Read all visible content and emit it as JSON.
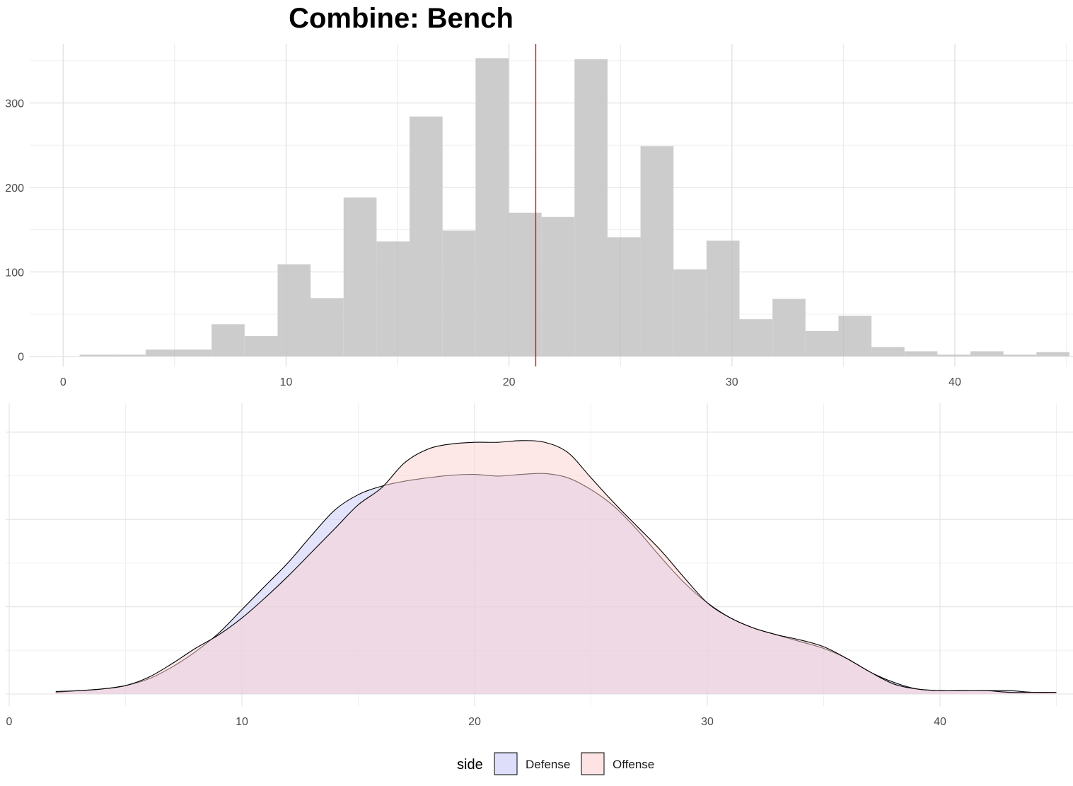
{
  "title": "Combine: Bench",
  "chart_data": [
    {
      "type": "bar",
      "subtype": "histogram",
      "xlim": [
        -1.5,
        45.3
      ],
      "ylim": [
        -12,
        370
      ],
      "x_ticks": [
        0,
        10,
        20,
        30,
        40
      ],
      "y_ticks": [
        0,
        100,
        200,
        300
      ],
      "grid": true,
      "bin_width": 1.48,
      "bin_starts": [
        0.74,
        2.22,
        3.7,
        5.18,
        6.66,
        8.14,
        9.62,
        11.1,
        12.58,
        14.06,
        15.54,
        17.02,
        18.5,
        19.98,
        21.46,
        22.94,
        24.42,
        25.9,
        27.38,
        28.86,
        30.34,
        31.82,
        33.3,
        34.78,
        36.26,
        37.74,
        39.22,
        40.7,
        42.18,
        43.66
      ],
      "values": [
        2,
        2,
        8,
        8,
        38,
        24,
        109,
        69,
        188,
        136,
        284,
        149,
        353,
        170,
        165,
        352,
        141,
        249,
        103,
        137,
        44,
        68,
        30,
        48,
        11,
        6,
        2,
        6,
        2,
        5
      ],
      "reference_line_x": 21.2,
      "reference_line_color": "#ff0000",
      "bar_color": "#cccccc"
    },
    {
      "type": "area",
      "subtype": "density",
      "xlim": [
        0,
        46
      ],
      "x_ticks": [
        0,
        10,
        20,
        30,
        40
      ],
      "y_tick_labels_shown": false,
      "grid": true,
      "legend_title": "side",
      "legend_position": "bottom",
      "series": [
        {
          "name": "Defense",
          "color": "#c8c8f8",
          "x": [
            2,
            3,
            4,
            5,
            6,
            7,
            8,
            9,
            10,
            11,
            12,
            13,
            14,
            15,
            16,
            17,
            18,
            19,
            20,
            21,
            22,
            23,
            24,
            25,
            26,
            27,
            28,
            29,
            30,
            31,
            32,
            33,
            34,
            35,
            36,
            37,
            38,
            39,
            40,
            41,
            42,
            43,
            44,
            45
          ],
          "y": [
            0.001,
            0.002,
            0.003,
            0.005,
            0.009,
            0.016,
            0.025,
            0.036,
            0.05,
            0.064,
            0.078,
            0.094,
            0.109,
            0.118,
            0.123,
            0.126,
            0.128,
            0.1295,
            0.13,
            0.129,
            0.13,
            0.1305,
            0.128,
            0.121,
            0.111,
            0.097,
            0.081,
            0.066,
            0.054,
            0.045,
            0.039,
            0.035,
            0.031,
            0.027,
            0.021,
            0.013,
            0.007,
            0.003,
            0.002,
            0.002,
            0.002,
            0.002,
            0.001,
            0.001
          ]
        },
        {
          "name": "Offense",
          "color": "#fbd0d0",
          "x": [
            2,
            3,
            4,
            5,
            6,
            7,
            8,
            9,
            10,
            11,
            12,
            13,
            14,
            15,
            16,
            17,
            18,
            19,
            20,
            21,
            22,
            23,
            24,
            25,
            26,
            27,
            28,
            29,
            30,
            31,
            32,
            33,
            34,
            35,
            36,
            37,
            38,
            39,
            40,
            41,
            42,
            43,
            44,
            45
          ],
          "y": [
            0.0015,
            0.002,
            0.003,
            0.005,
            0.01,
            0.018,
            0.027,
            0.035,
            0.045,
            0.057,
            0.07,
            0.084,
            0.098,
            0.112,
            0.122,
            0.137,
            0.145,
            0.148,
            0.149,
            0.149,
            0.15,
            0.149,
            0.143,
            0.128,
            0.113,
            0.099,
            0.085,
            0.069,
            0.054,
            0.045,
            0.039,
            0.035,
            0.032,
            0.028,
            0.021,
            0.013,
            0.006,
            0.003,
            0.002,
            0.002,
            0.002,
            0.001,
            0.001,
            0.001
          ]
        }
      ]
    }
  ]
}
